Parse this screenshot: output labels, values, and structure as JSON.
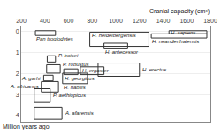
{
  "chart_data": {
    "type": "rectangle",
    "xlabel": "Cranial capacity (cm³)",
    "ylabel": "Million years ago",
    "xlim": [
      200,
      1800
    ],
    "ylim": [
      4.3,
      -0.25
    ],
    "xticks": [
      200,
      400,
      600,
      800,
      1000,
      1200,
      1400,
      1600,
      1800
    ],
    "yticks": [
      0,
      1,
      2,
      3,
      4
    ],
    "grid": true,
    "color": "#333333",
    "series": [
      {
        "name": "Pan troglodytes",
        "x_min": 320,
        "x_max": 490,
        "y_min": -0.05,
        "y_max": 0.18
      },
      {
        "name": "H. sapiens",
        "x_min": 1450,
        "x_max": 1770,
        "y_min": -0.05,
        "y_max": 0.1
      },
      {
        "name": "H. neanderthalensis",
        "x_min": 1300,
        "x_max": 1770,
        "y_min": 0.1,
        "y_max": 0.3
      },
      {
        "name": "H. heidelbergensis",
        "x_min": 780,
        "x_max": 1280,
        "y_min": 0.02,
        "y_max": 0.7
      },
      {
        "name": "H. antecessor",
        "x_min": 900,
        "x_max": 1100,
        "y_min": 0.55,
        "y_max": 0.82
      },
      {
        "name": "P. boisei",
        "x_min": 420,
        "x_max": 490,
        "y_min": 1.15,
        "y_max": 1.45
      },
      {
        "name": "P. robustus",
        "x_min": 415,
        "x_max": 530,
        "y_min": 1.58,
        "y_max": 1.98
      },
      {
        "name": "H. georgicus",
        "x_min": 560,
        "x_max": 680,
        "y_min": 1.78,
        "y_max": 2.05
      },
      {
        "name": "H. ergaster",
        "x_min": 700,
        "x_max": 900,
        "y_min": 1.68,
        "y_max": 2.05
      },
      {
        "name": "H. erectus",
        "x_min": 850,
        "x_max": 1200,
        "y_min": 1.5,
        "y_max": 2.13
      },
      {
        "name": "A. garhi",
        "x_min": 390,
        "x_max": 470,
        "y_min": 2.08,
        "y_max": 2.35
      },
      {
        "name": "H. habilis",
        "x_min": 550,
        "x_max": 760,
        "y_min": 1.98,
        "y_max": 2.48
      },
      {
        "name": "A. africanus",
        "x_min": 370,
        "x_max": 515,
        "y_min": 2.38,
        "y_max": 2.88
      },
      {
        "name": "P. aethiopicus",
        "x_min": 310,
        "x_max": 445,
        "y_min": 2.72,
        "y_max": 3.38
      },
      {
        "name": "A. afarensis",
        "x_min": 310,
        "x_max": 545,
        "y_min": 3.6,
        "y_max": 4.18
      }
    ]
  }
}
